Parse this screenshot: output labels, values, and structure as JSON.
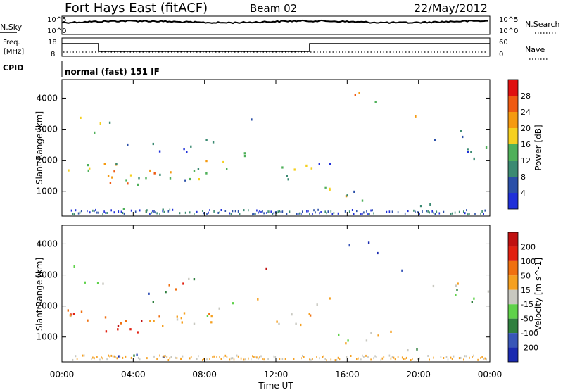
{
  "header": {
    "station": "Fort Hays East (fitACF)",
    "beam": "Beam 02",
    "date": "22/May/2012"
  },
  "strips": {
    "nsky_label": "N.Sky",
    "nsearch_label": "N.Search",
    "noise_ticks": [
      "10^5",
      "10^0"
    ],
    "freq_label_1": "Freq.",
    "freq_label_2": "[MHz]",
    "freq_ticks": [
      "18",
      "8"
    ],
    "nave_label": "Nave",
    "nave_ticks": [
      "60",
      "0"
    ],
    "cpid_label": "CPID",
    "cpid_text": "normal (fast) 151 IF"
  },
  "colors": {
    "power_scale": [
      "#1f2fd9",
      "#2a4fa8",
      "#3b8a72",
      "#4fb05a",
      "#f5d020",
      "#f59a10",
      "#ef5a12",
      "#e01010"
    ],
    "velocity_scale": [
      "#1a2ab0",
      "#3856b8",
      "#2f7f3f",
      "#5fd24a",
      "#c8c8c0",
      "#f5a020",
      "#f07010",
      "#e22010",
      "#c01010"
    ]
  },
  "chart_data": [
    {
      "type": "heatmap",
      "title": "Power",
      "xlabel": "Time UT",
      "ylabel": "Slant Range [km]",
      "x_ticks": [
        "00:00",
        "04:00",
        "08:00",
        "12:00",
        "16:00",
        "20:00",
        "00:00"
      ],
      "y_ticks": [
        1000,
        2000,
        3000,
        4000
      ],
      "ylim": [
        200,
        4600
      ],
      "colorbar": {
        "label": "Power [dB]",
        "ticks": [
          4,
          8,
          12,
          16,
          20,
          24,
          28
        ]
      }
    },
    {
      "type": "heatmap",
      "title": "Velocity",
      "xlabel": "Time UT",
      "ylabel": "Slant Range [km]",
      "x_ticks": [
        "00:00",
        "04:00",
        "08:00",
        "12:00",
        "16:00",
        "20:00",
        "00:00"
      ],
      "y_ticks": [
        1000,
        2000,
        3000,
        4000
      ],
      "ylim": [
        200,
        4600
      ],
      "colorbar": {
        "label": "Velocity [m s^-1]",
        "ticks": [
          200,
          100,
          50,
          15,
          -15,
          -50,
          -100,
          -200
        ]
      }
    }
  ]
}
